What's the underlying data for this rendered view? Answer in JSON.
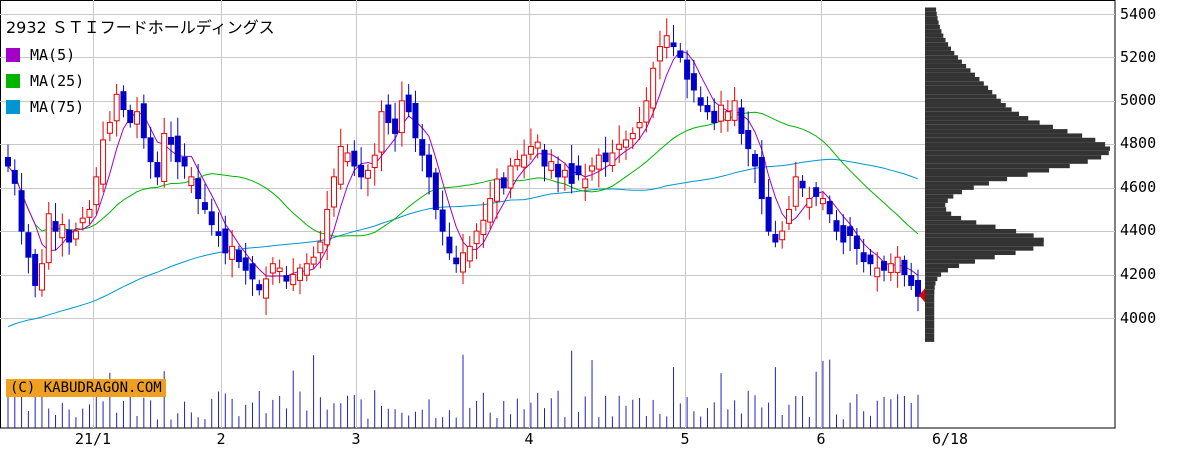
{
  "chart_data": {
    "type": "candlestick",
    "title": "2932 ＳＴＩフードホールディングス",
    "credit": "(C) KABUDRAGON.COM",
    "ylim": [
      3900,
      5450
    ],
    "y_ticks": [
      4000,
      4200,
      4400,
      4600,
      4800,
      5000,
      5200,
      5400
    ],
    "x_tick_labels": [
      "21/1",
      "2",
      "3",
      "4",
      "5",
      "6",
      "6/18"
    ],
    "legend": [
      {
        "name": "MA(5)",
        "color": "#a000c8"
      },
      {
        "name": "MA(25)",
        "color": "#00b400"
      },
      {
        "name": "MA(75)",
        "color": "#0096d2"
      }
    ],
    "colors": {
      "up": "#e60000",
      "down": "#0000c8",
      "volume": "#2020c0",
      "profile": "#333333",
      "marker": "#e60000",
      "grid": "#c8c8c8"
    },
    "last_price": 4105,
    "series": {
      "close": [
        4700,
        4620,
        4400,
        4280,
        4150,
        4250,
        4480,
        4400,
        4430,
        4350,
        4400,
        4460,
        4500,
        4650,
        4820,
        4900,
        5030,
        4960,
        4900,
        4950,
        4830,
        4720,
        4650,
        4850,
        4800,
        4720,
        4700,
        4650,
        4550,
        4500,
        4430,
        4380,
        4300,
        4330,
        4260,
        4220,
        4180,
        4130,
        4180,
        4250,
        4230,
        4170,
        4200,
        4230,
        4250,
        4280,
        4350,
        4500,
        4650,
        4790,
        4760,
        4700,
        4650,
        4680,
        4750,
        4950,
        4900,
        4850,
        5000,
        4950,
        4830,
        4750,
        4650,
        4500,
        4400,
        4300,
        4250,
        4300,
        4330,
        4400,
        4450,
        4550,
        4640,
        4600,
        4700,
        4730,
        4750,
        4790,
        4810,
        4700,
        4720,
        4650,
        4680,
        4620,
        4660,
        4640,
        4700,
        4750,
        4720,
        4760,
        4800,
        4820,
        4850,
        4900,
        5000,
        5150,
        5250,
        5300,
        5250,
        5200,
        5100,
        5050,
        4980,
        4950,
        4900,
        4980,
        4950,
        5000,
        4850,
        4780,
        4700,
        4550,
        4400,
        4350,
        4400,
        4500,
        4650,
        4600,
        4550,
        4560,
        4550,
        4480,
        4400,
        4350,
        4380,
        4320,
        4260,
        4250,
        4230,
        4220,
        4250,
        4280,
        4200,
        4150,
        4100
      ]
    },
    "volume_max": 100
  }
}
